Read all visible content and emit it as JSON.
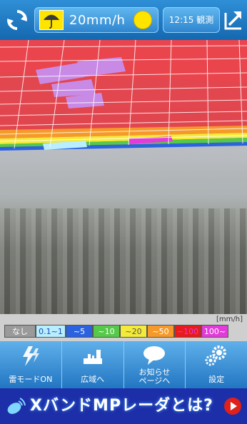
{
  "header": {
    "rain_value": "20mm/h",
    "time_label": "12:15 観測",
    "umbrella_color": "#ffe400",
    "sun_color": "#ffe400"
  },
  "legend": {
    "unit": "[mm/h]",
    "items": [
      {
        "label": "なし",
        "color": "#9a9a9a"
      },
      {
        "label": "0.1~1",
        "color": "#b8eeff"
      },
      {
        "label": "~5",
        "color": "#2a62e0"
      },
      {
        "label": "~10",
        "color": "#56c84a"
      },
      {
        "label": "~20",
        "color": "#f3ea3a"
      },
      {
        "label": "~50",
        "color": "#f59a2a"
      },
      {
        "label": "~100",
        "color": "#e81a1a"
      },
      {
        "label": "100~",
        "color": "#e23bd9"
      }
    ]
  },
  "menu": {
    "items": [
      {
        "label": "雷モードON",
        "icon": "lightning-icon"
      },
      {
        "label": "広域へ",
        "icon": "wide-area-icon"
      },
      {
        "label": "お知らせ\nページへ",
        "icon": "speech-bubble-icon"
      },
      {
        "label": "設定",
        "icon": "gear-icon"
      }
    ]
  },
  "banner": {
    "text": "XバンドMPレーダとは?"
  }
}
